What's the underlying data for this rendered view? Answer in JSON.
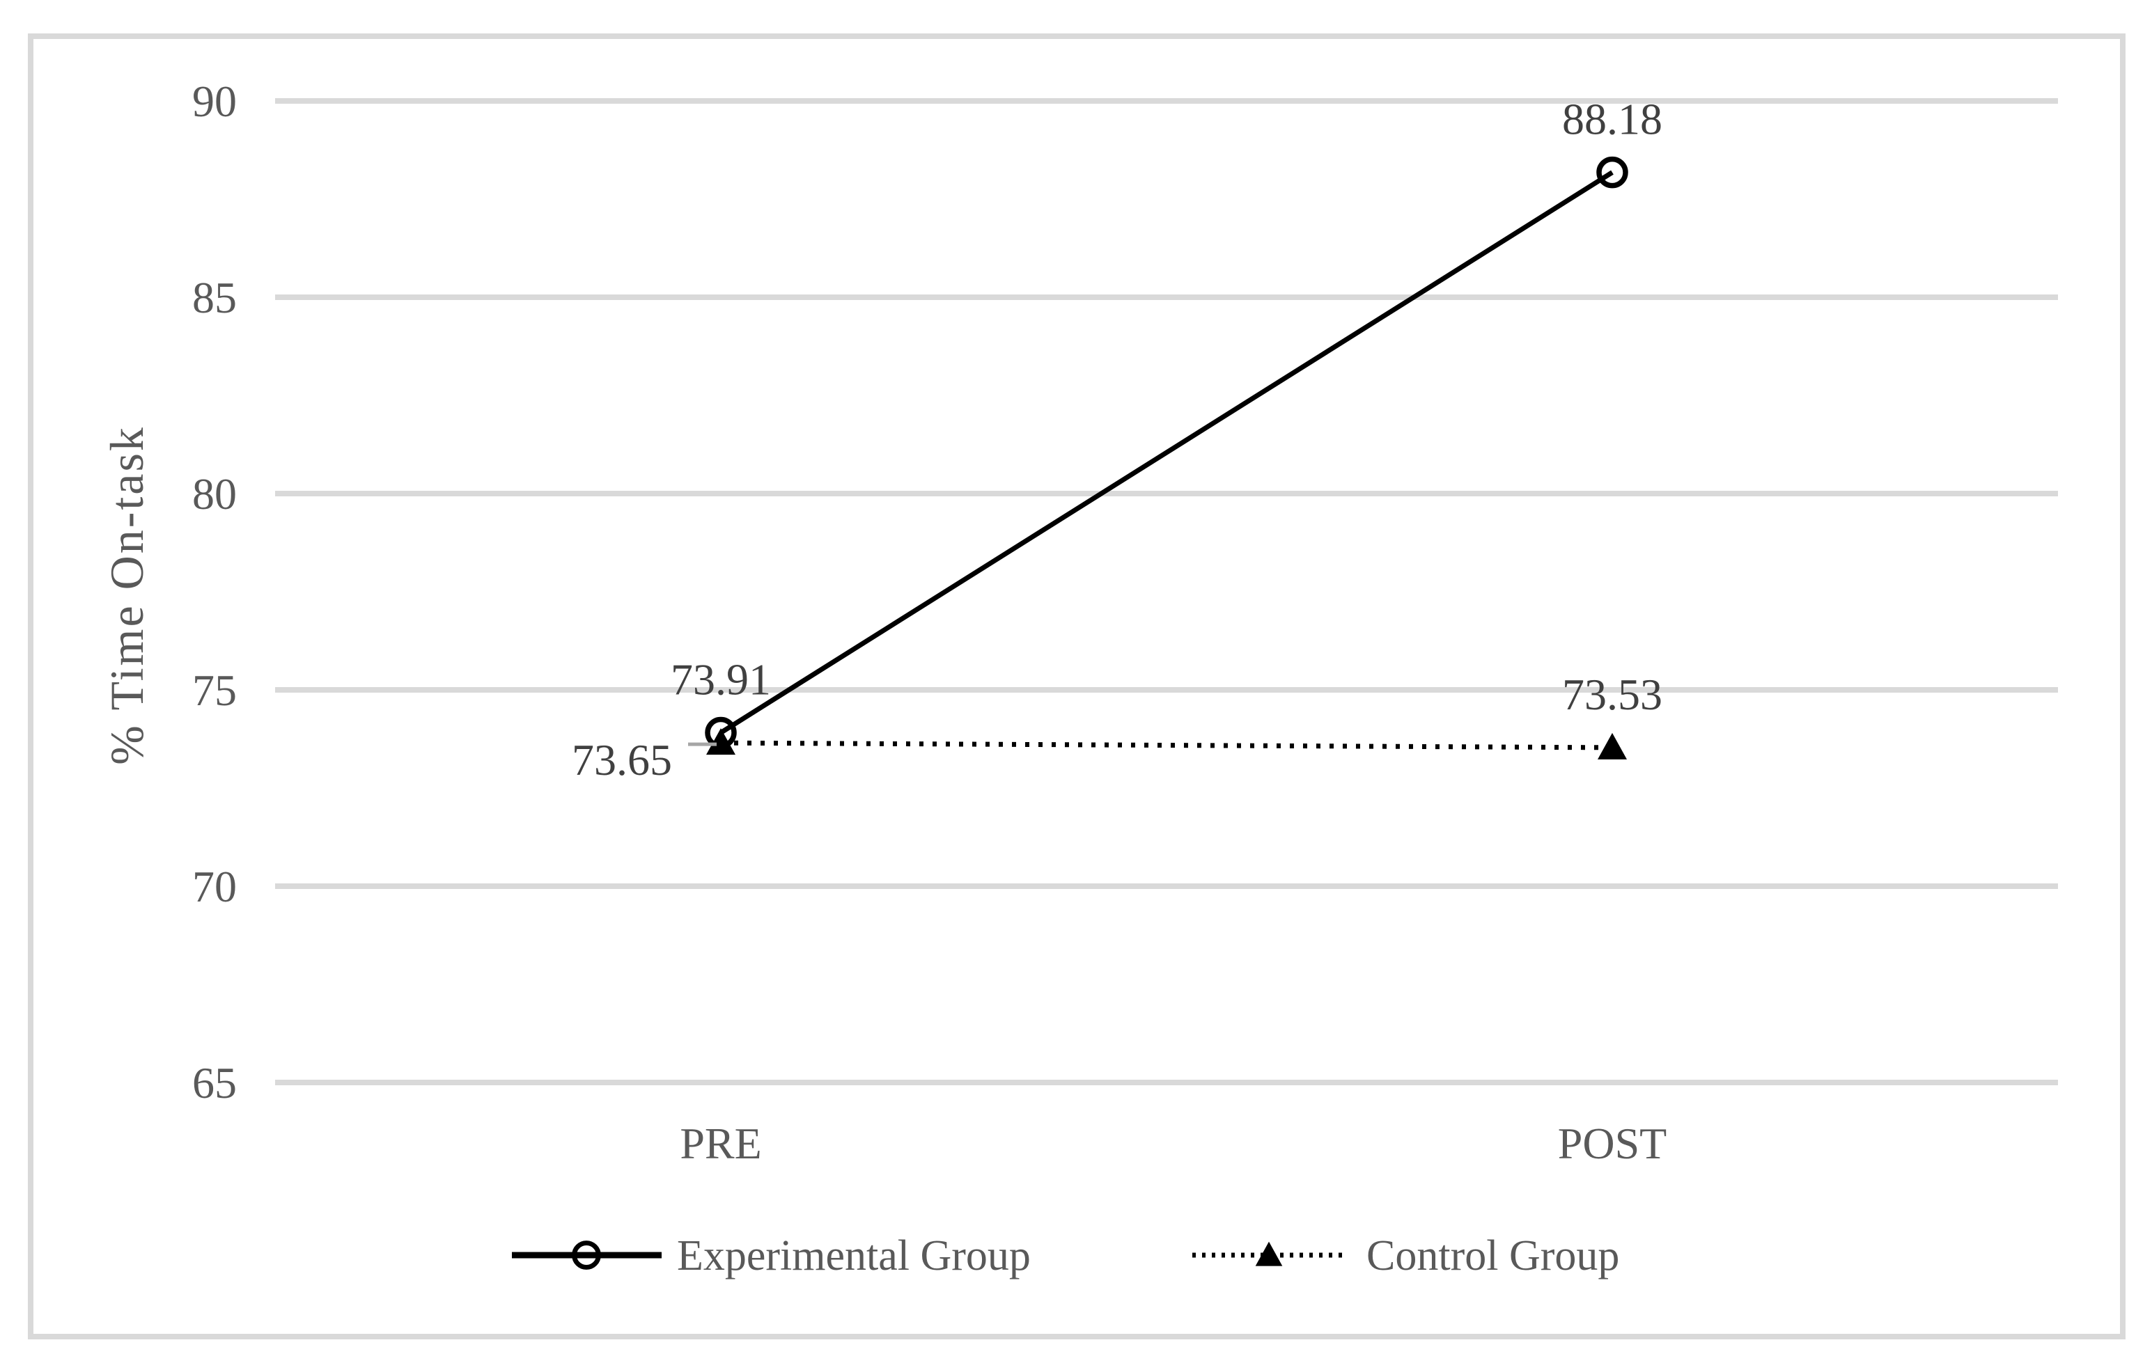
{
  "chart_data": {
    "type": "line",
    "title": "",
    "categories": [
      "PRE",
      "POST"
    ],
    "series": [
      {
        "name": "Experimental Group",
        "values": [
          73.91,
          88.18
        ],
        "data_labels": [
          "73.91",
          "88.18"
        ],
        "label_placement": [
          "above",
          "above"
        ],
        "line_style": "solid",
        "marker": "open-circle",
        "color": "#000000"
      },
      {
        "name": "Control Group",
        "values": [
          73.65,
          73.53
        ],
        "data_labels": [
          "73.65",
          "73.53"
        ],
        "label_placement": [
          "left",
          "above"
        ],
        "line_style": "dotted",
        "marker": "filled-triangle",
        "color": "#000000"
      }
    ],
    "xlabel": "",
    "ylabel": "% Time On-task",
    "ylim": [
      65,
      90
    ],
    "yticks": [
      90,
      85,
      80,
      75,
      70,
      65
    ],
    "grid": "horizontal-only",
    "legend_position": "bottom",
    "colors": {
      "background": "#ffffff",
      "frame_border": "#d9d9d9",
      "gridline": "#d9d9d9",
      "axis_text": "#595959",
      "data_label_text": "#404040",
      "legend_text": "#595959",
      "series_stroke": "#000000",
      "leader_line": "#a6a6a6"
    }
  }
}
